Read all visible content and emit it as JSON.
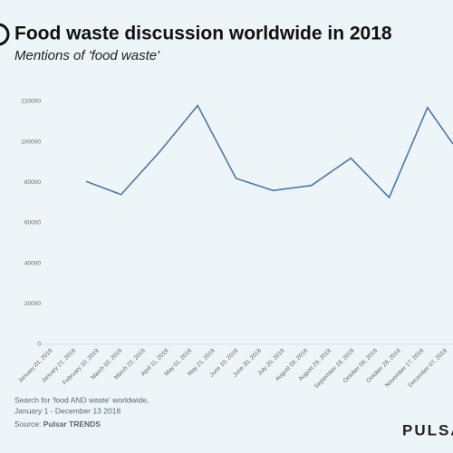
{
  "chart_data": {
    "type": "line",
    "title": "Food waste discussion worldwide in 2018",
    "subtitle": "Mentions of 'food waste'",
    "note_lines": [
      "Search for 'food AND waste' worldwide,",
      "January 1 - December 13 2018"
    ],
    "source_label": "Source:",
    "source": "Pulsar TRENDS",
    "brand": "PULSAR",
    "color": "#4a78a8",
    "x": [
      30,
      60,
      93,
      126,
      159,
      191,
      224,
      258,
      291,
      324,
      346
    ],
    "values": [
      80500,
      74000,
      95000,
      118000,
      82000,
      76000,
      78500,
      92000,
      72500,
      117000,
      99000
    ],
    "xlim": [
      -10,
      346
    ],
    "ylim": [
      0,
      120000
    ],
    "yticks": [
      0,
      20000,
      40000,
      60000,
      80000,
      100000,
      120000
    ],
    "xticks": [
      {
        "value": 0,
        "label": "January 01, 2018"
      },
      {
        "value": 20,
        "label": "January 21, 2018"
      },
      {
        "value": 40,
        "label": "February 10, 2018"
      },
      {
        "value": 60,
        "label": "March 02, 2018"
      },
      {
        "value": 80,
        "label": "March 22, 2018"
      },
      {
        "value": 100,
        "label": "April 11, 2018"
      },
      {
        "value": 120,
        "label": "May 01, 2018"
      },
      {
        "value": 140,
        "label": "May 21, 2018"
      },
      {
        "value": 160,
        "label": "June 10, 2018"
      },
      {
        "value": 180,
        "label": "June 30, 2018"
      },
      {
        "value": 200,
        "label": "July 20, 2018"
      },
      {
        "value": 220,
        "label": "August 09, 2018"
      },
      {
        "value": 240,
        "label": "August 29, 2018"
      },
      {
        "value": 260,
        "label": "September 18, 2018"
      },
      {
        "value": 280,
        "label": "October 08, 2018"
      },
      {
        "value": 300,
        "label": "October 28, 2018"
      },
      {
        "value": 320,
        "label": "November 17, 2018"
      },
      {
        "value": 340,
        "label": "December 07, 2018"
      }
    ]
  }
}
